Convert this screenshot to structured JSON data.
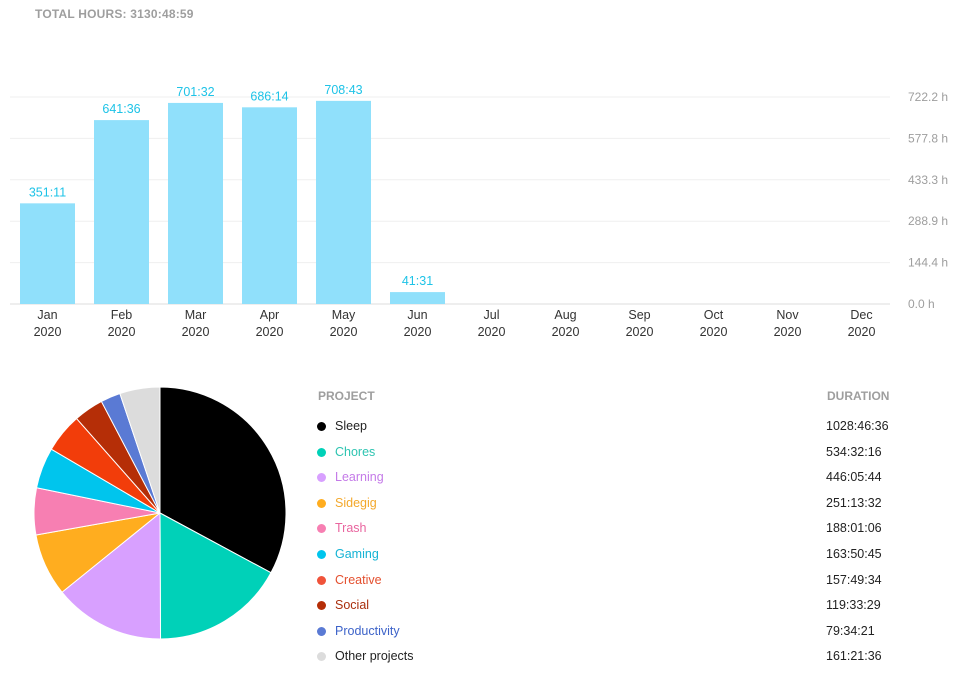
{
  "header": {
    "total_hours": "TOTAL HOURS: 3130:48:59"
  },
  "chart_data": [
    {
      "type": "bar",
      "title": "",
      "categories": [
        "Jan\n2020",
        "Feb\n2020",
        "Mar\n2020",
        "Apr\n2020",
        "May\n2020",
        "Jun\n2020",
        "Jul\n2020",
        "Aug\n2020",
        "Sep\n2020",
        "Oct\n2020",
        "Nov\n2020",
        "Dec\n2020"
      ],
      "month_labels": [
        "Jan",
        "Feb",
        "Mar",
        "Apr",
        "May",
        "Jun",
        "Jul",
        "Aug",
        "Sep",
        "Oct",
        "Nov",
        "Dec"
      ],
      "year_labels": [
        "2020",
        "2020",
        "2020",
        "2020",
        "2020",
        "2020",
        "2020",
        "2020",
        "2020",
        "2020",
        "2020",
        "2020"
      ],
      "values": [
        351.19,
        641.6,
        701.53,
        686.23,
        708.72,
        41.52,
        0,
        0,
        0,
        0,
        0,
        0
      ],
      "data_labels": [
        "351:11",
        "641:36",
        "701:32",
        "686:14",
        "708:43",
        "41:31",
        "",
        "",
        "",
        "",
        "",
        ""
      ],
      "y_ticks": [
        0,
        144.4,
        288.9,
        433.3,
        577.8,
        722.2
      ],
      "y_tick_labels": [
        "0.0 h",
        "144.4 h",
        "288.9 h",
        "433.3 h",
        "577.8 h",
        "722.2 h"
      ],
      "ylim": [
        0,
        722.2
      ],
      "xlabel": "",
      "ylabel": "",
      "color": "#90e0fb",
      "label_color": "#1ec3e7"
    },
    {
      "type": "pie",
      "labels": [
        "Sleep",
        "Chores",
        "Learning",
        "Sidegig",
        "Trash",
        "Gaming",
        "Creative",
        "Social",
        "Productivity",
        "Other projects"
      ],
      "values": [
        1028.78,
        534.54,
        446.1,
        251.23,
        188.02,
        163.85,
        157.83,
        119.56,
        79.57,
        161.36
      ],
      "colors": [
        "#000000",
        "#00d1b8",
        "#d8a0ff",
        "#ffad1f",
        "#f77fb2",
        "#00c5ed",
        "#f23d0a",
        "#b52e07",
        "#5a7ad4",
        "#dcdcdc"
      ]
    }
  ],
  "legend": {
    "project_header": "PROJECT",
    "duration_header": "DURATION",
    "items": [
      {
        "name": "Sleep",
        "duration": "1028:46:36",
        "color": "#000000",
        "text_color": "#222222"
      },
      {
        "name": "Chores",
        "duration": "534:32:16",
        "color": "#00d1b8",
        "text_color": "#2ec4b1"
      },
      {
        "name": "Learning",
        "duration": "446:05:44",
        "color": "#d8a0ff",
        "text_color": "#c47ae8"
      },
      {
        "name": "Sidegig",
        "duration": "251:13:32",
        "color": "#ffad1f",
        "text_color": "#f3a82b"
      },
      {
        "name": "Trash",
        "duration": "188:01:06",
        "color": "#f77fb2",
        "text_color": "#e9659f"
      },
      {
        "name": "Gaming",
        "duration": "163:50:45",
        "color": "#00c5ed",
        "text_color": "#14b3d4"
      },
      {
        "name": "Creative",
        "duration": "157:49:34",
        "color": "#f0533a",
        "text_color": "#e4502f"
      },
      {
        "name": "Social",
        "duration": "119:33:29",
        "color": "#b52e07",
        "text_color": "#a92e0c"
      },
      {
        "name": "Productivity",
        "duration": "79:34:21",
        "color": "#5a7ad4",
        "text_color": "#3d63c9"
      },
      {
        "name": "Other projects",
        "duration": "161:21:36",
        "color": "#dcdcdc",
        "text_color": "#222222"
      }
    ]
  }
}
